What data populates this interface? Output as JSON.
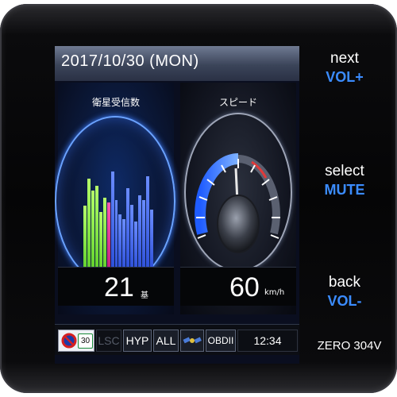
{
  "screen": {
    "date": "2017/10/30 (MON)",
    "satellites": {
      "title": "衛星受信数",
      "count": "21",
      "unit": "基",
      "bars": [
        {
          "level": 0.55,
          "color": "green"
        },
        {
          "level": 0.78,
          "color": "green"
        },
        {
          "level": 0.68,
          "color": "green"
        },
        {
          "level": 0.72,
          "color": "green"
        },
        {
          "level": 0.5,
          "color": "green"
        },
        {
          "level": 0.62,
          "color": "green"
        },
        {
          "level": 0.58,
          "color": "pink"
        },
        {
          "level": 0.84,
          "color": "blue"
        },
        {
          "level": 0.6,
          "color": "blue"
        },
        {
          "level": 0.48,
          "color": "blue"
        },
        {
          "level": 0.44,
          "color": "blue"
        },
        {
          "level": 0.7,
          "color": "blue"
        },
        {
          "level": 0.56,
          "color": "blue"
        },
        {
          "level": 0.42,
          "color": "blue"
        },
        {
          "level": 0.64,
          "color": "blue"
        },
        {
          "level": 0.6,
          "color": "blue"
        },
        {
          "level": 0.8,
          "color": "blue"
        },
        {
          "level": 0.52,
          "color": "blue"
        }
      ]
    },
    "speed": {
      "title": "スピード",
      "value": "60",
      "unit": "km/h"
    },
    "status": {
      "badge": "30",
      "lsc": "LSC",
      "hyp": "HYP",
      "all": "ALL",
      "obd": "OBDII",
      "time": "12:34"
    }
  },
  "side_buttons": [
    {
      "top": "next",
      "bottom": "VOL+"
    },
    {
      "top": "select",
      "bottom": "MUTE"
    },
    {
      "top": "back",
      "bottom": "VOL-"
    }
  ],
  "model": "ZERO 304V",
  "colors": {
    "accent_blue": "#3b8cff",
    "bar_green": "#7fe03a",
    "bar_pink": "#e0318f",
    "bar_blue": "#3a5ef0"
  }
}
